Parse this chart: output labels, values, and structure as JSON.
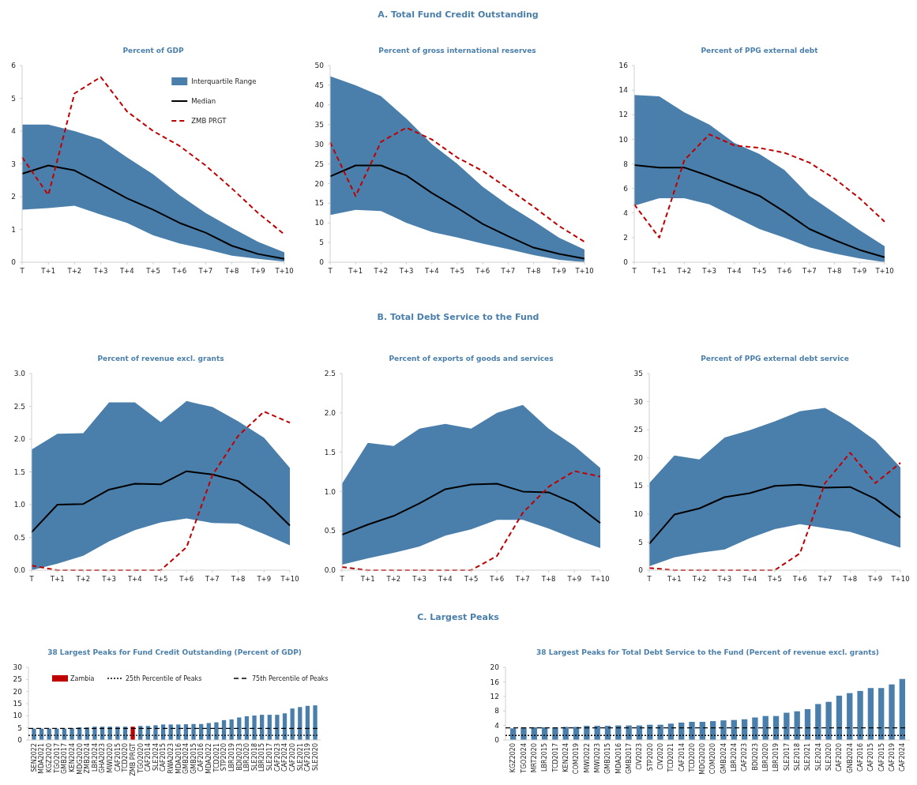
{
  "chart_data": [
    {
      "type": "line",
      "title": "Percent of GDP",
      "annotations": [
        "A. Total Fund Credit Outstanding",
        "Interquartile Range"
      ],
      "color": "#4a7fab",
      "categories": [
        "T",
        "T+1",
        "T+2",
        "T+3",
        "T+4",
        "T+5",
        "T+6",
        "T+7",
        "T+8",
        "T+9",
        "T+10"
      ],
      "ylim": [
        0,
        6
      ],
      "yticks": [
        0,
        1,
        2,
        3,
        4,
        5,
        6
      ],
      "legend": "top right",
      "series": [
        {
          "name": "Median",
          "type": "line",
          "color": "#000000",
          "line_style": "solid",
          "values": [
            2.7,
            2.95,
            2.8,
            2.38,
            1.95,
            1.6,
            1.2,
            0.9,
            0.5,
            0.25,
            0.1
          ],
          "lower": [
            1.6,
            1.65,
            1.72,
            1.45,
            1.2,
            0.82,
            0.57,
            0.4,
            0.2,
            0.1,
            0.02
          ],
          "upper": [
            4.2,
            4.2,
            4.0,
            3.75,
            3.2,
            2.68,
            2.05,
            1.5,
            1.05,
            0.62,
            0.3
          ]
        },
        {
          "name": "ZMB PRGT",
          "type": "line",
          "color": "#c00000",
          "line_style": "dashed",
          "values": [
            3.2,
            2.05,
            5.15,
            5.65,
            4.6,
            4.0,
            3.55,
            2.95,
            2.25,
            1.5,
            0.85
          ]
        }
      ]
    },
    {
      "type": "line",
      "title": "Percent of gross international reserves",
      "color": "#4a7fab",
      "categories": [
        "T",
        "T+1",
        "T+2",
        "T+3",
        "T+4",
        "T+5",
        "T+6",
        "T+7",
        "T+8",
        "T+9",
        "T+10"
      ],
      "ylim": [
        0,
        50
      ],
      "yticks": [
        0,
        5,
        10,
        15,
        20,
        25,
        30,
        35,
        40,
        45,
        50
      ],
      "series": [
        {
          "type": "line",
          "color": "#000000",
          "line_style": "solid",
          "values": [
            21.8,
            24.6,
            24.6,
            22,
            17.6,
            13.8,
            9.7,
            6.6,
            3.7,
            2.1,
            0.9
          ],
          "lower": [
            12,
            13.3,
            13,
            10,
            7.7,
            6.3,
            4.7,
            3.3,
            1.8,
            0.6,
            0
          ],
          "upper": [
            47.3,
            45,
            42.2,
            36.5,
            30,
            25,
            19.2,
            14.5,
            10.5,
            6.2,
            3.2
          ]
        },
        {
          "type": "line",
          "color": "#c00000",
          "line_style": "dashed",
          "values": [
            30.5,
            16.8,
            30.6,
            34.2,
            31.2,
            26.6,
            23.2,
            18.7,
            14.1,
            9.2,
            5.2
          ]
        }
      ]
    },
    {
      "type": "line",
      "title": "Percent of PPG external debt",
      "color": "#4a7fab",
      "categories": [
        "T",
        "T+1",
        "T+2",
        "T+3",
        "T+4",
        "T+5",
        "T+6",
        "T+7",
        "T+8",
        "T+9",
        "T+10"
      ],
      "ylim": [
        0,
        16
      ],
      "yticks": [
        0,
        2,
        4,
        6,
        8,
        10,
        12,
        14,
        16
      ],
      "series": [
        {
          "type": "line",
          "color": "#000000",
          "line_style": "solid",
          "values": [
            7.9,
            7.7,
            7.7,
            7,
            6.2,
            5.4,
            4.1,
            2.7,
            1.8,
            1,
            0.4
          ],
          "lower": [
            4.6,
            5.2,
            5.2,
            4.7,
            3.7,
            2.7,
            2,
            1.2,
            0.7,
            0.3,
            0
          ],
          "upper": [
            13.6,
            13.5,
            12.2,
            11.2,
            9.7,
            8.8,
            7.5,
            5.4,
            4,
            2.6,
            1.3
          ]
        },
        {
          "type": "line",
          "color": "#c00000",
          "line_style": "dashed",
          "values": [
            4.7,
            2.0,
            8.3,
            10.4,
            9.5,
            9.3,
            8.9,
            8.1,
            6.8,
            5.2,
            3.3
          ]
        }
      ]
    },
    {
      "type": "line",
      "title": "Percent of revenue excl. grants",
      "annotations": [
        "B. Total Debt Service to the Fund"
      ],
      "color": "#4a7fab",
      "categories": [
        "T",
        "T+1",
        "T+2",
        "T+3",
        "T+4",
        "T+5",
        "T+6",
        "T+7",
        "T+8",
        "T+9",
        "T+10"
      ],
      "ylim": [
        0,
        3
      ],
      "yticks": [
        {
          "value": 0,
          "label": "0.0"
        },
        {
          "value": 0.5,
          "label": "0.5"
        },
        {
          "value": 1,
          "label": "1.0"
        },
        {
          "value": 1.5,
          "label": "1.5"
        },
        {
          "value": 2,
          "label": "2.0"
        },
        {
          "value": 2.5,
          "label": "2.5"
        },
        {
          "value": 3,
          "label": "3.0"
        }
      ],
      "series": [
        {
          "type": "line",
          "color": "#000000",
          "line_style": "solid",
          "values": [
            0.58,
            1.0,
            1.01,
            1.23,
            1.32,
            1.31,
            1.51,
            1.46,
            1.36,
            1.07,
            0.68
          ],
          "lower": [
            0,
            0.1,
            0.22,
            0.44,
            0.61,
            0.73,
            0.79,
            0.72,
            0.71,
            0.55,
            0.38
          ],
          "upper": [
            1.84,
            2.08,
            2.09,
            2.56,
            2.56,
            2.26,
            2.58,
            2.49,
            2.27,
            2.02,
            1.56
          ]
        },
        {
          "type": "line",
          "color": "#c00000",
          "line_style": "dashed",
          "values": [
            0.07,
            0,
            0,
            0,
            0,
            0,
            0.35,
            1.45,
            2.05,
            2.42,
            2.25
          ]
        }
      ]
    },
    {
      "type": "line",
      "title": "Percent of exports of goods and services",
      "color": "#4a7fab",
      "categories": [
        "T",
        "T+1",
        "T+2",
        "T+3",
        "T+4",
        "T+5",
        "T+6",
        "T+7",
        "T+8",
        "T+9",
        "T+10"
      ],
      "ylim": [
        0,
        2.5
      ],
      "yticks": [
        {
          "value": 0,
          "label": "0.0"
        },
        {
          "value": 0.5,
          "label": "0.5"
        },
        {
          "value": 1,
          "label": "1.0"
        },
        {
          "value": 1.5,
          "label": "1.5"
        },
        {
          "value": 2,
          "label": "2.0"
        },
        {
          "value": 2.5,
          "label": "2.5"
        }
      ],
      "series": [
        {
          "type": "line",
          "color": "#000000",
          "line_style": "solid",
          "values": [
            0.45,
            0.58,
            0.69,
            0.85,
            1.03,
            1.09,
            1.1,
            1.0,
            0.99,
            0.85,
            0.6
          ],
          "lower": [
            0.07,
            0.15,
            0.22,
            0.3,
            0.44,
            0.52,
            0.64,
            0.64,
            0.53,
            0.4,
            0.28
          ],
          "upper": [
            1.1,
            1.62,
            1.58,
            1.8,
            1.86,
            1.8,
            2.0,
            2.1,
            1.8,
            1.58,
            1.3
          ]
        },
        {
          "type": "line",
          "color": "#c00000",
          "line_style": "dashed",
          "values": [
            0.04,
            0,
            0,
            0,
            0,
            0,
            0.18,
            0.73,
            1.06,
            1.26,
            1.19
          ]
        }
      ]
    },
    {
      "type": "line",
      "title": "Percent of PPG external debt service",
      "color": "#4a7fab",
      "categories": [
        "T",
        "T+1",
        "T+2",
        "T+3",
        "T+4",
        "T+5",
        "T+6",
        "T+7",
        "T+8",
        "T+9",
        "T+10"
      ],
      "ylim": [
        0,
        35
      ],
      "yticks": [
        0,
        5,
        10,
        15,
        20,
        25,
        30,
        35
      ],
      "series": [
        {
          "type": "line",
          "color": "#000000",
          "line_style": "solid",
          "values": [
            4.7,
            9.9,
            11.0,
            13.0,
            13.7,
            15.0,
            15.2,
            14.7,
            14.8,
            12.7,
            9.4
          ],
          "lower": [
            0.7,
            2.3,
            3.1,
            3.7,
            5.7,
            7.3,
            8.2,
            7.5,
            6.8,
            5.4,
            4.0
          ],
          "upper": [
            15.5,
            20.4,
            19.7,
            23.6,
            24.9,
            26.5,
            28.3,
            28.9,
            26.3,
            23.1,
            18.3
          ]
        },
        {
          "type": "line",
          "color": "#c00000",
          "line_style": "dashed",
          "values": [
            0.4,
            0,
            0,
            0,
            0,
            0,
            3.0,
            15.5,
            20.9,
            15.5,
            19.1
          ]
        }
      ]
    },
    {
      "type": "bar",
      "title": "38 Largest Peaks for Fund Credit Outstanding (Percent of GDP)",
      "annotations": [
        "C. Largest Peaks"
      ],
      "legend": "top",
      "categories": [
        "SEN2022",
        "MDA2021",
        "KGZ2020",
        "TGO2017",
        "GMB2017",
        "KEN2024",
        "MDG2020",
        "ZMB2024",
        "LBR2024",
        "GHA2023",
        "MWI2020",
        "CAF2015",
        "TCD2020",
        "ZMB PRGT",
        "TGO2020",
        "CAF2014",
        "SLE2024",
        "CAF2015",
        "RWA2023",
        "MDA2016",
        "GMB2024",
        "GMB2015",
        "CAF2016",
        "MDA2022",
        "TCD2021",
        "STP2020",
        "LBR2019",
        "BDI2023",
        "LBR2020",
        "SLE2018",
        "LBR2015",
        "SLE2017",
        "CAF2023",
        "CAF2024",
        "CAF2020",
        "SLE2021",
        "CAF2019",
        "SLE2020"
      ],
      "ylim": [
        0,
        30
      ],
      "yticks": [
        0,
        5,
        10,
        15,
        20,
        25,
        30
      ],
      "series": [
        {
          "color": "#4a7fab",
          "values": [
            4.7,
            4.7,
            4.7,
            4.7,
            4.7,
            4.9,
            5.2,
            5.2,
            5.5,
            5.5,
            5.5,
            5.5,
            5.5,
            null,
            5.8,
            5.8,
            6.1,
            6.4,
            6.4,
            6.4,
            6.5,
            6.6,
            6.6,
            7.0,
            7.3,
            8.2,
            8.5,
            9.3,
            9.8,
            10.1,
            10.4,
            10.4,
            10.4,
            11.0,
            13.0,
            13.6,
            14.1,
            14.3
          ]
        },
        {
          "name": "Zambia",
          "color": "#c00000",
          "values": [
            null,
            null,
            null,
            null,
            null,
            null,
            null,
            null,
            null,
            null,
            null,
            null,
            null,
            5.5,
            null,
            null,
            null,
            null,
            null,
            null,
            null,
            null,
            null,
            null,
            null,
            null,
            null,
            null,
            null,
            null,
            null,
            null,
            null,
            null,
            null,
            null,
            null,
            null
          ]
        }
      ],
      "ref_lines": [
        {
          "axis": "y",
          "value": 1.9,
          "label": "25th Percentile of Peaks",
          "line_style": "dotted",
          "color": "#000000"
        },
        {
          "axis": "y",
          "value": 4.8,
          "label": "75th Percentile of Peaks",
          "line_style": "dashed",
          "color": "#000000"
        }
      ]
    },
    {
      "type": "bar",
      "title": "38 Largest Peaks for Total Debt Service to the Fund (Percent of revenue excl. grants)",
      "categories": [
        "KGZ2020",
        "TGO2024",
        "MRT2020",
        "LBR2015",
        "TCD2017",
        "KEN2024",
        "COM2019",
        "MWI2022",
        "MWI2023",
        "GMB2015",
        "MDA2016",
        "GMB2017",
        "CIV2023",
        "STP2020",
        "CIV2020",
        "TCD2021",
        "CAF2014",
        "TCD2020",
        "MDG2020",
        "COM2020",
        "GMB2024",
        "LBR2024",
        "CAF2023",
        "BDI2023",
        "LBR2020",
        "LBR2019",
        "SLE2017",
        "SLE2018",
        "SLE2021",
        "SLE2024",
        "SLE2020",
        "CAF2020",
        "GNB2024",
        "CAF2016",
        "CAF2015",
        "CAF2015",
        "CAF2019",
        "CAF2024"
      ],
      "ylim": [
        0,
        20
      ],
      "yticks": [
        0,
        4,
        8,
        12,
        16,
        20
      ],
      "series": [
        {
          "color": "#4a7fab",
          "values": [
            3.2,
            3.5,
            3.5,
            3.5,
            3.5,
            3.6,
            3.6,
            3.9,
            3.9,
            3.9,
            4.0,
            4.0,
            4.0,
            4.2,
            4.2,
            4.5,
            4.8,
            5.0,
            5.0,
            5.2,
            5.4,
            5.5,
            5.7,
            6.2,
            6.6,
            6.6,
            7.5,
            7.9,
            8.5,
            9.9,
            10.5,
            12.2,
            12.9,
            13.5,
            14.3,
            14.3,
            15.3,
            16.8
          ]
        }
      ],
      "ref_lines": [
        {
          "axis": "y",
          "value": 1.25,
          "line_style": "dotted",
          "color": "#000000"
        },
        {
          "axis": "y",
          "value": 3.35,
          "line_style": "dashed",
          "color": "#000000"
        }
      ]
    }
  ]
}
